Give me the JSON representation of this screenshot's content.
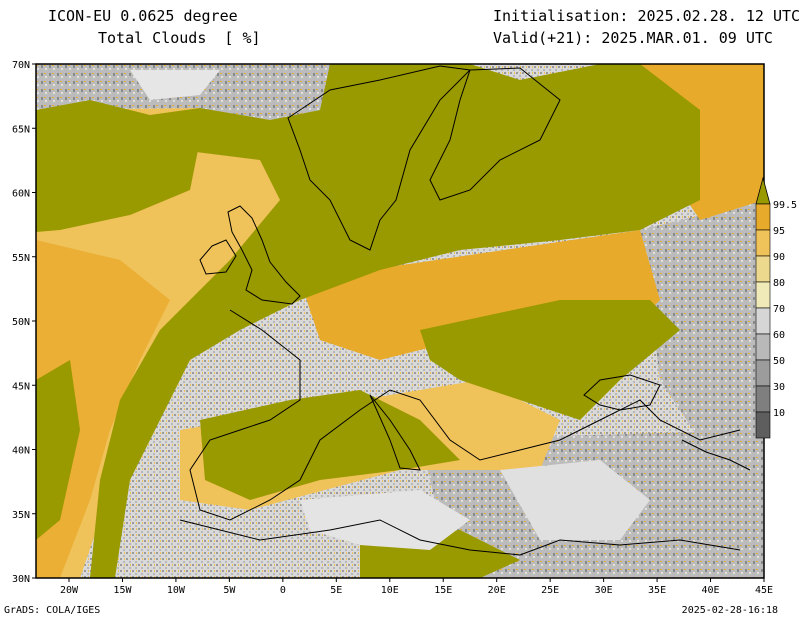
{
  "header": {
    "model": "ICON-EU 0.0625 degree",
    "field": "Total Clouds  [ %]",
    "init": "Initialisation: 2025.02.28. 12 UTC",
    "valid": "Valid(+21): 2025.MAR.01. 09 UTC"
  },
  "footer": {
    "credit": "GrADS: COLA/IGES",
    "timestamp": "2025-02-28-16:18"
  },
  "map": {
    "lat_labels": [
      "70N",
      "65N",
      "60N",
      "55N",
      "50N",
      "45N",
      "40N",
      "35N",
      "30N"
    ],
    "lon_labels": [
      "20W",
      "15W",
      "10W",
      "5W",
      "0",
      "5E",
      "10E",
      "15E",
      "20E",
      "25E",
      "30E",
      "35E",
      "40E",
      "45E"
    ],
    "colorbar": {
      "labels": [
        "99.5",
        "95",
        "90",
        "80",
        "70",
        "60",
        "50",
        "30",
        "10"
      ],
      "colors": [
        "#999900",
        "#e8aa2a",
        "#f0c25a",
        "#ecd98e",
        "#f0eab8",
        "#d6d6d6",
        "#b9b9b9",
        "#9c9c9c",
        "#7f7f7f",
        "#5e5e5e"
      ]
    },
    "palette": {
      "overcast": "#999900",
      "high": "#e8aa2a",
      "mid": "#f0c25a",
      "light": "#ecd98e",
      "clear": "#dcdcdc",
      "gray": "#a8a8a8"
    }
  }
}
